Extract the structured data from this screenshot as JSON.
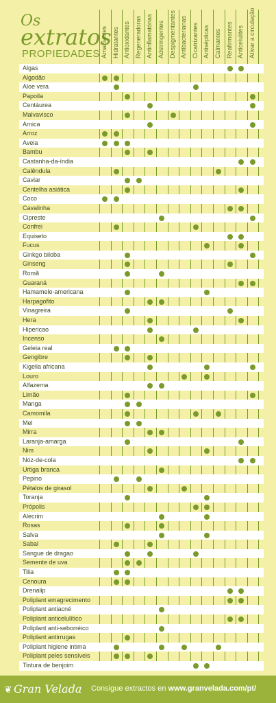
{
  "title": {
    "line1": "Os",
    "line2": "extratos",
    "line3": "PROPIEDADES"
  },
  "columns": [
    "Amaciantes",
    "Hidratantes",
    "Antioxidantes",
    "Regeneradoras",
    "Antinflamatórias",
    "Adstringentes",
    "Despigmentantes",
    "Antibacterianas",
    "Cicatrizantes",
    "Antisépticas",
    "Calmantes",
    "Reafirmantes",
    "Anticelulites",
    "Ativar a circulação"
  ],
  "rows": [
    {
      "name": "Algas",
      "c": [
        11,
        12
      ]
    },
    {
      "name": "Algodão",
      "c": [
        0,
        1
      ]
    },
    {
      "name": "Aloe vera",
      "c": [
        1,
        8
      ]
    },
    {
      "name": "Papoila",
      "c": [
        2,
        13
      ]
    },
    {
      "name": "Centáurea",
      "c": [
        4,
        13
      ]
    },
    {
      "name": "Malvavisco",
      "c": [
        2,
        6
      ]
    },
    {
      "name": "Arnica",
      "c": [
        4,
        13
      ]
    },
    {
      "name": "Arroz",
      "c": [
        0,
        1
      ]
    },
    {
      "name": "Aveia",
      "c": [
        0,
        1,
        2
      ]
    },
    {
      "name": "Bambu",
      "c": [
        2,
        4
      ]
    },
    {
      "name": "Castanha-da-índia",
      "c": [
        12,
        13
      ]
    },
    {
      "name": "Calêndula",
      "c": [
        1,
        10
      ]
    },
    {
      "name": "Caviar",
      "c": [
        2,
        3
      ]
    },
    {
      "name": "Centelha asiática",
      "c": [
        2,
        12
      ]
    },
    {
      "name": "Coco",
      "c": [
        0,
        1
      ]
    },
    {
      "name": "Cavalinha",
      "c": [
        11,
        12
      ]
    },
    {
      "name": "Cipreste",
      "c": [
        5,
        13
      ]
    },
    {
      "name": "Confrei",
      "c": [
        1,
        8
      ]
    },
    {
      "name": "Equiseto",
      "c": [
        11,
        12
      ]
    },
    {
      "name": "Fucus",
      "c": [
        9,
        12
      ]
    },
    {
      "name": "Ginkgo biloba",
      "c": [
        2,
        13
      ]
    },
    {
      "name": "Ginseng",
      "c": [
        2,
        11
      ]
    },
    {
      "name": "Romã",
      "c": [
        2,
        5
      ]
    },
    {
      "name": "Guaraná",
      "c": [
        12,
        13
      ]
    },
    {
      "name": "Hamamele-americana",
      "c": [
        2,
        9
      ]
    },
    {
      "name": "Harpagofito",
      "c": [
        4,
        5
      ]
    },
    {
      "name": "Vinagreira",
      "c": [
        2,
        11
      ]
    },
    {
      "name": "Hera",
      "c": [
        4,
        12
      ]
    },
    {
      "name": "Hipericao",
      "c": [
        4,
        8
      ]
    },
    {
      "name": "Incenso",
      "c": [
        5
      ]
    },
    {
      "name": "Geleia real",
      "c": [
        1,
        2
      ]
    },
    {
      "name": "Gengibre",
      "c": [
        2,
        4
      ]
    },
    {
      "name": "Kigelia africana",
      "c": [
        4,
        9,
        13
      ]
    },
    {
      "name": "Louro",
      "c": [
        7,
        9
      ]
    },
    {
      "name": "Alfazema",
      "c": [
        4,
        5
      ]
    },
    {
      "name": "Limão",
      "c": [
        2,
        13
      ]
    },
    {
      "name": "Manga",
      "c": [
        2,
        3
      ]
    },
    {
      "name": "Camomila",
      "c": [
        2,
        8,
        10
      ]
    },
    {
      "name": "Mel",
      "c": [
        2,
        3
      ]
    },
    {
      "name": "Mirra",
      "c": [
        4,
        5
      ]
    },
    {
      "name": "Laranja-amarga",
      "c": [
        2,
        12
      ]
    },
    {
      "name": "Nim",
      "c": [
        4,
        9
      ]
    },
    {
      "name": "Nóz-de-cola",
      "c": [
        12,
        13
      ]
    },
    {
      "name": "Urtiga branca",
      "c": [
        5
      ]
    },
    {
      "name": "Pepino",
      "c": [
        1,
        3
      ]
    },
    {
      "name": "Pétalos de girasol",
      "c": [
        4,
        7
      ]
    },
    {
      "name": "Toranja",
      "c": [
        2,
        9
      ]
    },
    {
      "name": "Própolis",
      "c": [
        8,
        9
      ]
    },
    {
      "name": "Alecrim",
      "c": [
        5,
        9
      ]
    },
    {
      "name": "Rosas",
      "c": [
        2,
        5
      ]
    },
    {
      "name": "Salva",
      "c": [
        5,
        9
      ]
    },
    {
      "name": "Sabal",
      "c": [
        1,
        4
      ]
    },
    {
      "name": "Sangue de dragao",
      "c": [
        2,
        4,
        8
      ]
    },
    {
      "name": "Semente de uva",
      "c": [
        2,
        3
      ]
    },
    {
      "name": "Tilia",
      "c": [
        1,
        2
      ]
    },
    {
      "name": "Cenoura",
      "c": [
        1,
        2
      ]
    },
    {
      "name": "Drenalip",
      "c": [
        11,
        12
      ]
    },
    {
      "name": "Poliplant emagrecimento",
      "c": [
        11,
        12
      ]
    },
    {
      "name": "Poliplant antiacné",
      "c": [
        5
      ]
    },
    {
      "name": "Poliplant anticelulítico",
      "c": [
        11,
        12
      ]
    },
    {
      "name": "Poliplant anti-seborréico",
      "c": [
        5
      ]
    },
    {
      "name": "Poliplant antirrugas",
      "c": [
        2
      ]
    },
    {
      "name": "Poliplant higiene intima",
      "c": [
        1,
        5,
        7,
        10
      ]
    },
    {
      "name": "Poliplant peles sensíveis",
      "c": [
        1,
        2,
        4
      ]
    },
    {
      "name": "Tintura de benjoim",
      "c": [
        8,
        9
      ]
    }
  ],
  "footer": {
    "brand": "Gran Velada",
    "text_prefix": "Consigue extractos en ",
    "url": "www.granvelada.com/pt/"
  },
  "colors": {
    "background": "#f4f0a8",
    "accent": "#7a9a2a",
    "footer": "#9bb33b"
  },
  "icons": {
    "logo": "leaf-icon"
  }
}
